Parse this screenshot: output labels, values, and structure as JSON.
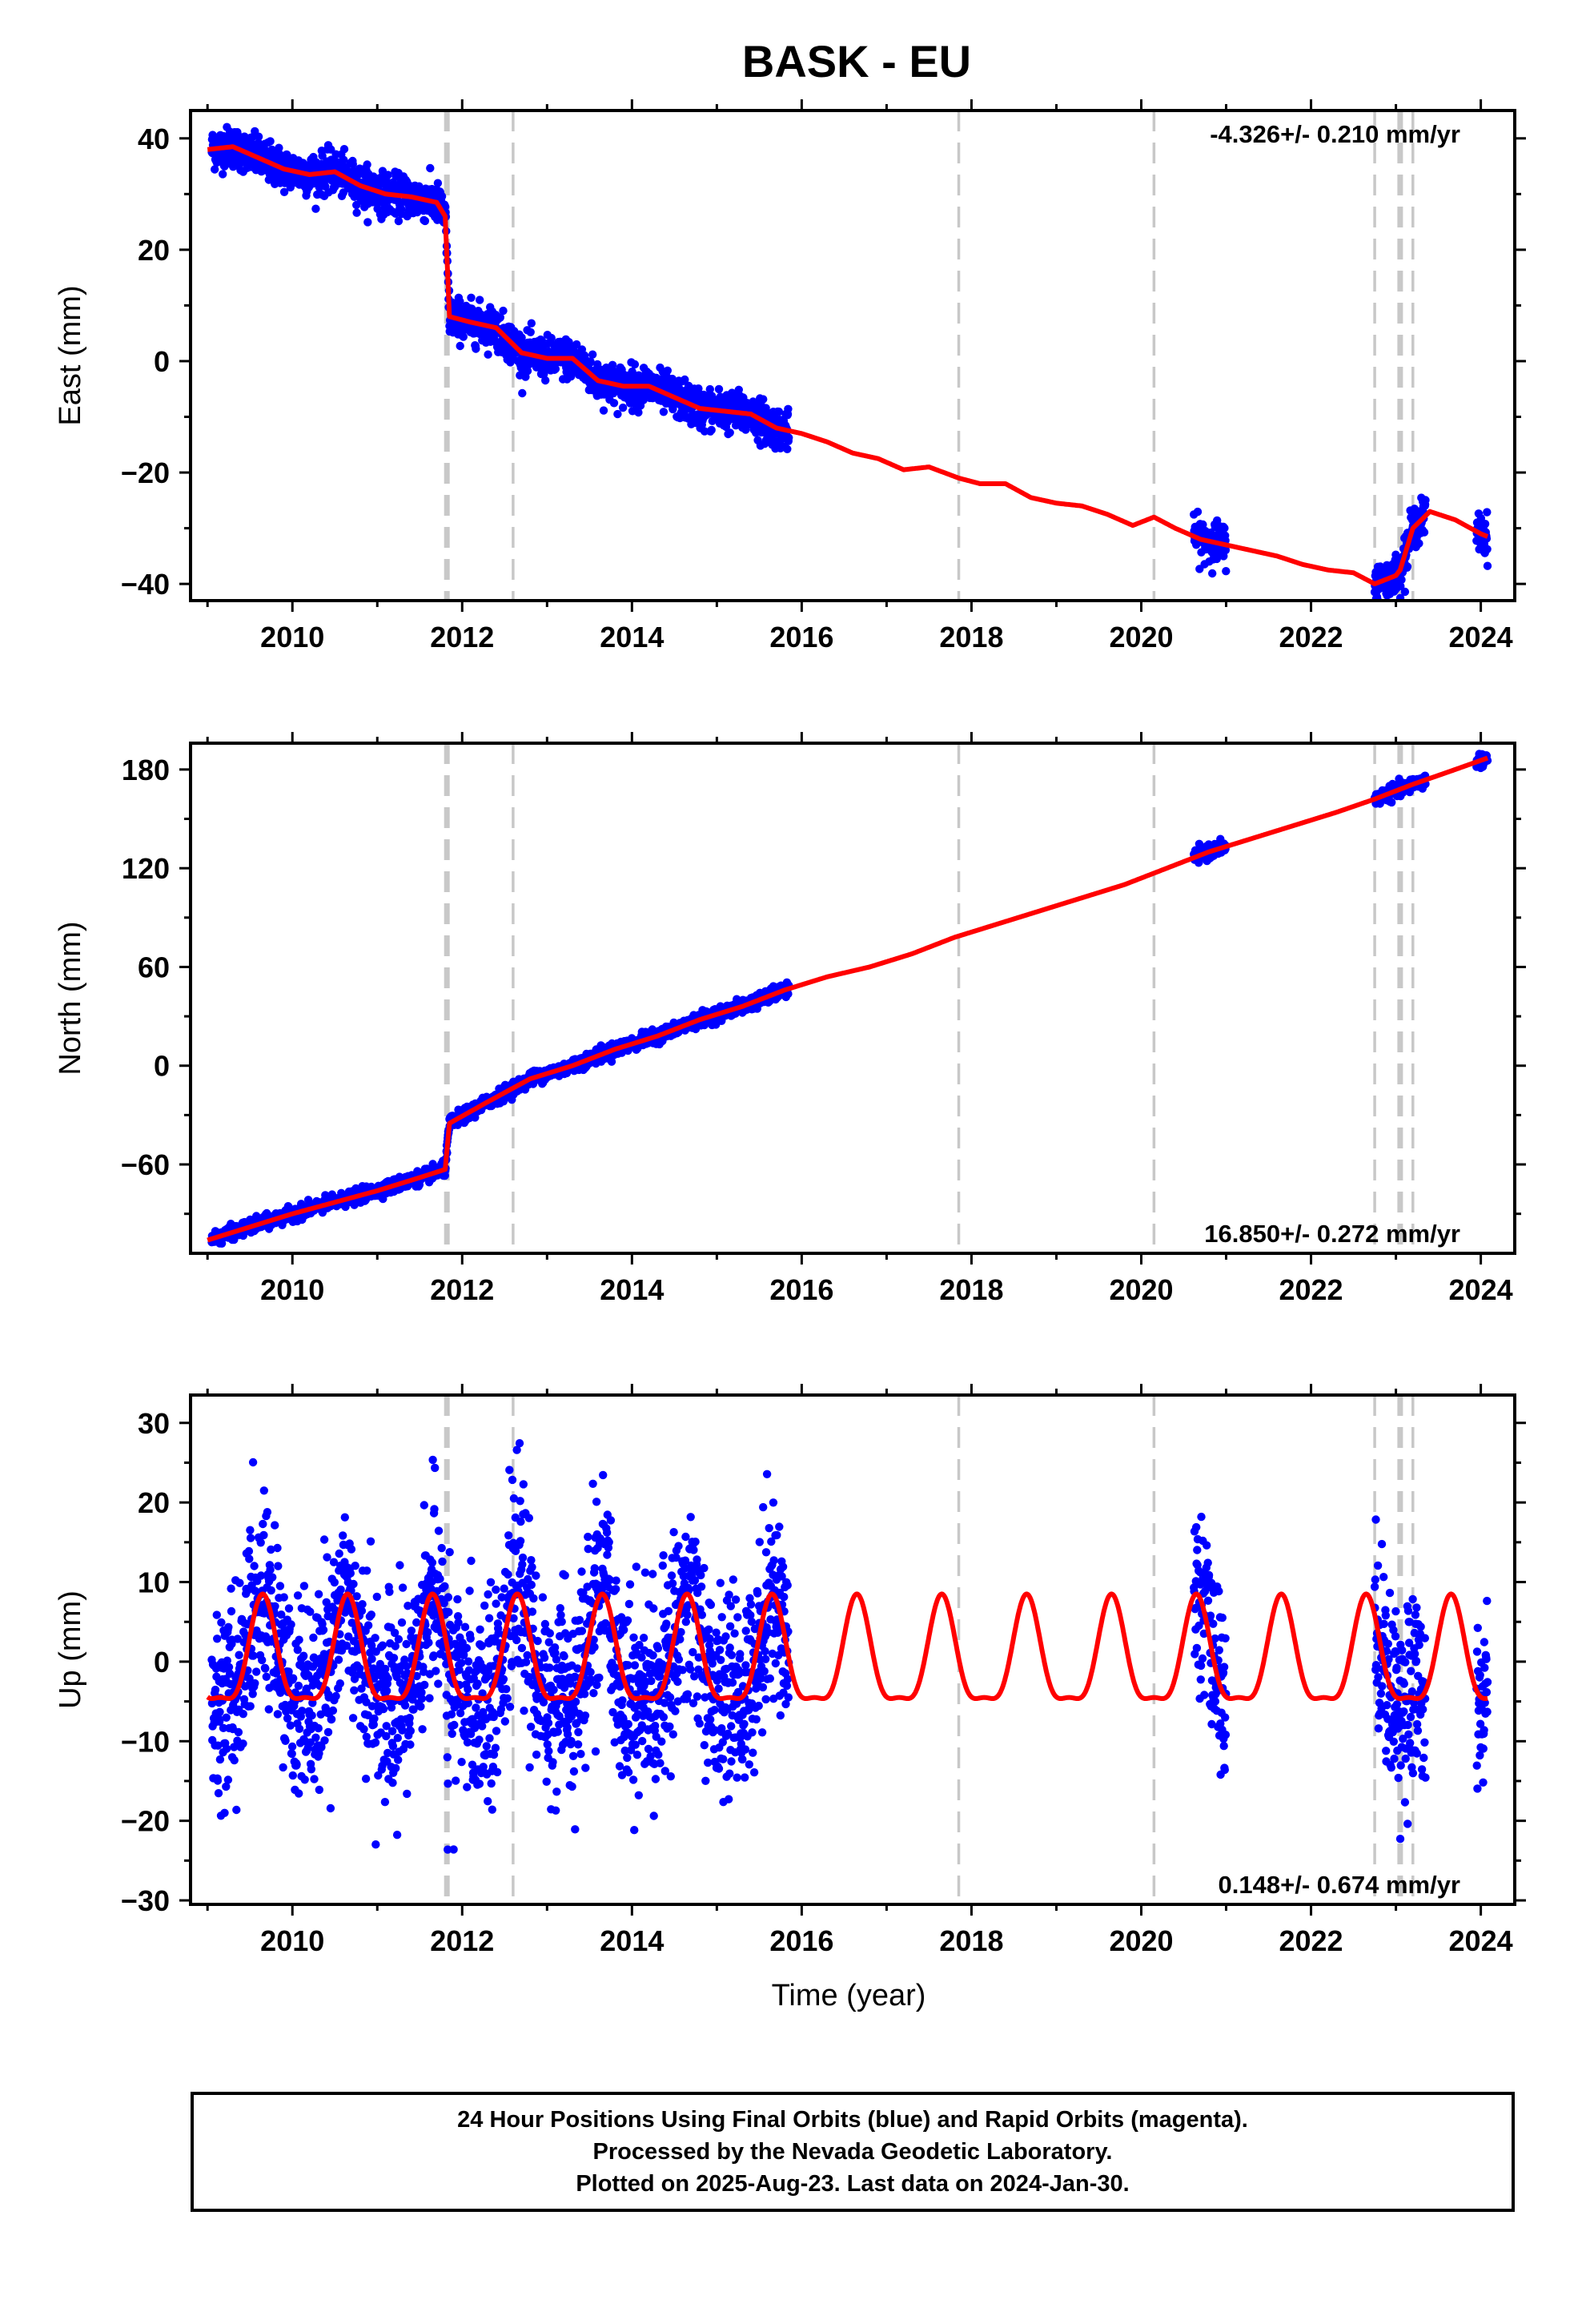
{
  "title": "BASK - EU",
  "colors": {
    "final": "#0000ff",
    "model": "#ff0000",
    "breaks": "#c8c8c8"
  },
  "footer": {
    "line1": "24 Hour Positions Using Final Orbits (blue) and Rapid Orbits (magenta).",
    "line2": "Processed by the Nevada Geodetic Laboratory.",
    "line3": "Plotted on 2025-Aug-23. Last data on 2024-Jan-30."
  },
  "chart_data": [
    {
      "type": "scatter",
      "id": "east",
      "title": "BASK - EU",
      "xlabel": "",
      "ylabel": "East (mm)",
      "xlim": [
        2008.8,
        2024.4
      ],
      "ylim": [
        -43,
        45
      ],
      "xticks": [
        2010,
        2012,
        2014,
        2016,
        2018,
        2020,
        2022,
        2024
      ],
      "yticks": [
        -40,
        -20,
        0,
        20,
        40
      ],
      "velocity_label": "-4.326+/- 0.210 mm/yr",
      "velocity_position": "top-right",
      "break_lines": [
        2011.82,
        2012.6,
        2017.85,
        2020.15,
        2022.75,
        2023.05,
        2023.2
      ],
      "data_segments": [
        [
          2009.05,
          2015.85
        ],
        [
          2020.62,
          2021.0
        ],
        [
          2022.75,
          2023.35
        ],
        [
          2023.95,
          2024.08
        ]
      ],
      "model_line": {
        "x": [
          2009.0,
          2009.3,
          2009.6,
          2009.9,
          2010.2,
          2010.5,
          2010.8,
          2011.1,
          2011.4,
          2011.7,
          2011.8,
          2011.85,
          2012.1,
          2012.4,
          2012.7,
          2013.0,
          2013.3,
          2013.6,
          2013.9,
          2014.2,
          2014.5,
          2014.8,
          2015.1,
          2015.4,
          2015.7,
          2016.0,
          2016.3,
          2016.6,
          2016.9,
          2017.2,
          2017.5,
          2017.85,
          2018.1,
          2018.4,
          2018.7,
          2019.0,
          2019.3,
          2019.6,
          2019.9,
          2020.15,
          2020.4,
          2020.7,
          2021.0,
          2021.3,
          2021.6,
          2021.9,
          2022.2,
          2022.5,
          2022.75,
          2023.0,
          2023.05,
          2023.2,
          2023.4,
          2023.7,
          2024.0,
          2024.08
        ],
        "y": [
          38,
          38.5,
          36.5,
          34.5,
          33.5,
          34,
          31.5,
          30,
          29.5,
          28.5,
          26,
          8,
          7,
          6,
          1.5,
          0.5,
          0.5,
          -3.5,
          -4.5,
          -4.5,
          -6.5,
          -8.5,
          -9,
          -9.5,
          -12,
          -13,
          -14.5,
          -16.5,
          -17.5,
          -19.5,
          -19,
          -21,
          -22,
          -22,
          -24.5,
          -25.5,
          -26,
          -27.5,
          -29.5,
          -28,
          -30,
          -32,
          -33,
          -34,
          -35,
          -36.5,
          -37.5,
          -38,
          -40,
          -38.5,
          -37.5,
          -30,
          -27,
          -28.5,
          -31,
          -31.5
        ]
      }
    },
    {
      "type": "scatter",
      "id": "north",
      "title": "",
      "xlabel": "",
      "ylabel": "North (mm)",
      "xlim": [
        2008.8,
        2024.4
      ],
      "ylim": [
        -114,
        196
      ],
      "xticks": [
        2010,
        2012,
        2014,
        2016,
        2018,
        2020,
        2022,
        2024
      ],
      "yticks": [
        -60,
        0,
        60,
        120,
        180
      ],
      "ytick_labels": [
        "−60",
        "0",
        "60",
        "120",
        "180"
      ],
      "velocity_label": "16.850+/- 0.272 mm/yr",
      "velocity_position": "bottom-right",
      "break_lines": [
        2011.82,
        2012.6,
        2017.85,
        2020.15,
        2022.75,
        2023.05,
        2023.2
      ],
      "data_segments": [
        [
          2009.05,
          2015.85
        ],
        [
          2020.62,
          2021.0
        ],
        [
          2022.75,
          2023.35
        ],
        [
          2023.95,
          2024.08
        ]
      ],
      "model_line": {
        "x": [
          2009.0,
          2009.5,
          2010.0,
          2010.5,
          2011.0,
          2011.5,
          2011.8,
          2011.85,
          2012.3,
          2012.8,
          2013.3,
          2013.8,
          2014.3,
          2014.8,
          2015.3,
          2015.8,
          2016.3,
          2016.8,
          2017.3,
          2017.8,
          2018.3,
          2018.8,
          2019.3,
          2019.8,
          2020.3,
          2020.8,
          2021.3,
          2021.8,
          2022.3,
          2022.75,
          2023.05,
          2023.2,
          2023.7,
          2024.08
        ],
        "y": [
          -106,
          -98,
          -90,
          -83,
          -76,
          -68,
          -63,
          -35,
          -22,
          -8,
          0,
          10,
          18,
          28,
          36,
          46,
          54,
          60,
          68,
          78,
          86,
          94,
          102,
          110,
          120,
          130,
          138,
          146,
          154,
          162,
          168,
          171,
          180,
          187
        ]
      }
    },
    {
      "type": "scatter",
      "id": "up",
      "title": "",
      "xlabel": "Time (year)",
      "ylabel": "Up (mm)",
      "xlim": [
        2008.8,
        2024.4
      ],
      "ylim": [
        -30.5,
        33.5
      ],
      "xticks": [
        2010,
        2012,
        2014,
        2016,
        2018,
        2020,
        2022,
        2024
      ],
      "yticks": [
        -30,
        -20,
        -10,
        0,
        10,
        20,
        30
      ],
      "ytick_labels": [
        "−30",
        "−20",
        "−10",
        "0",
        "10",
        "20",
        "30"
      ],
      "velocity_label": "0.148+/- 0.674 mm/yr",
      "velocity_position": "bottom-right",
      "break_lines": [
        2011.82,
        2012.6,
        2017.85,
        2020.15,
        2022.75,
        2023.05,
        2023.2
      ],
      "data_segments": [
        [
          2009.05,
          2015.85
        ],
        [
          2020.62,
          2021.0
        ],
        [
          2022.75,
          2023.35
        ],
        [
          2023.95,
          2024.08
        ]
      ],
      "seasonal_model": {
        "amplitude_mm": 6.5,
        "period_years": 1.0,
        "peak_phase_year": 0.65
      }
    }
  ]
}
